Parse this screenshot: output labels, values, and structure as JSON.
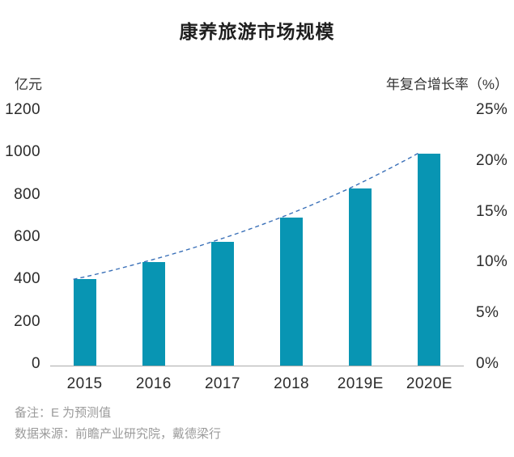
{
  "title": "康养旅游市场规模",
  "footer": {
    "note": "备注：E 为预测值",
    "source": "数据来源：前瞻产业研究院，戴德梁行"
  },
  "chart_data": {
    "type": "bar",
    "title": "康养旅游市场规模",
    "categories": [
      "2015",
      "2016",
      "2017",
      "2018",
      "2019E",
      "2020E"
    ],
    "values": [
      400,
      480,
      576,
      691,
      829,
      995
    ],
    "left_axis": {
      "label": "亿元",
      "ticks": [
        0,
        200,
        400,
        600,
        800,
        1000,
        1200
      ],
      "min": 0,
      "max": 1200
    },
    "right_axis": {
      "label": "年复合增长率（%）",
      "ticks": [
        "0%",
        "5%",
        "10%",
        "15%",
        "20%",
        "25%"
      ],
      "min": 0,
      "max": 25
    },
    "trend_line": {
      "follows": "bar-tops",
      "style": "dashed"
    },
    "grid": false,
    "legend": false,
    "colors": {
      "bar": "#0895b3",
      "trend_line": "#3a70b8",
      "axis_line": "#ababab",
      "tick_text": "#2b2b2b",
      "title_text": "#1f1f1f",
      "footer_text": "#9b9b9b"
    }
  }
}
